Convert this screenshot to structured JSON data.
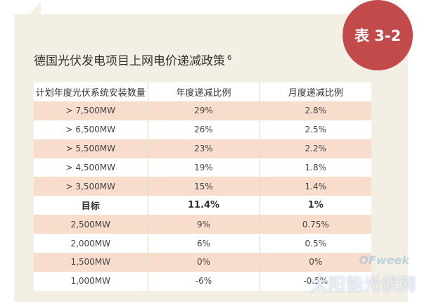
{
  "badge": "表 3-2",
  "title": "德国光伏发电项目上网电价递减政策",
  "title_superscript": "6",
  "table": {
    "headers": [
      "计划年度光伏系统安装数量",
      "年度递减比例",
      "月度递减比例"
    ],
    "rows": [
      {
        "c1": "> 7,500MW",
        "c2": "29%",
        "c3": "2.8%"
      },
      {
        "c1": "> 6,500MW",
        "c2": "26%",
        "c3": "2.5%"
      },
      {
        "c1": "> 5,500MW",
        "c2": "23%",
        "c3": "2.2%"
      },
      {
        "c1": "> 4,500MW",
        "c2": "19%",
        "c3": "1.8%"
      },
      {
        "c1": "> 3,500MW",
        "c2": "15%",
        "c3": "1.4%"
      },
      {
        "c1": "目标",
        "c2": "11.4%",
        "c3": "1%"
      },
      {
        "c1": "2,500MW",
        "c2": "9%",
        "c3": "0.75%"
      },
      {
        "c1": "2,000MW",
        "c2": "6%",
        "c3": "0.5%"
      },
      {
        "c1": "1,500MW",
        "c2": "0%",
        "c3": "0%"
      },
      {
        "c1": "1,000MW",
        "c2": "-6%",
        "c3": "-0.5%"
      }
    ]
  },
  "watermark": {
    "top": "OFweek",
    "bottom": "太阳能光伏网"
  },
  "colors": {
    "badge": "#c24a4a",
    "card": "#f4efe4",
    "row_highlight": "#f9ddcc",
    "row_plain": "#ffffff"
  }
}
